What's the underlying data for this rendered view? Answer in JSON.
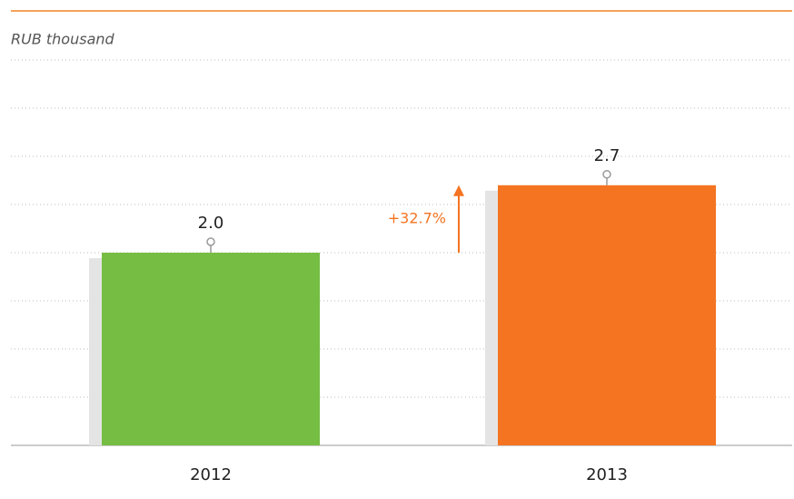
{
  "chart_data": {
    "type": "bar",
    "axis_label": "RUB thousand",
    "categories": [
      "2012",
      "2013"
    ],
    "values": [
      2.0,
      2.7
    ],
    "value_labels": [
      "2.0",
      "2.7"
    ],
    "colors": [
      "#76bd43",
      "#f47421"
    ],
    "annotation": "+32.7%",
    "annotation_color": "#f47421",
    "ylim": [
      0,
      4
    ],
    "yticks": [
      0,
      0.5,
      1,
      1.5,
      2,
      2.5,
      3,
      3.5,
      4
    ],
    "grid": true
  }
}
